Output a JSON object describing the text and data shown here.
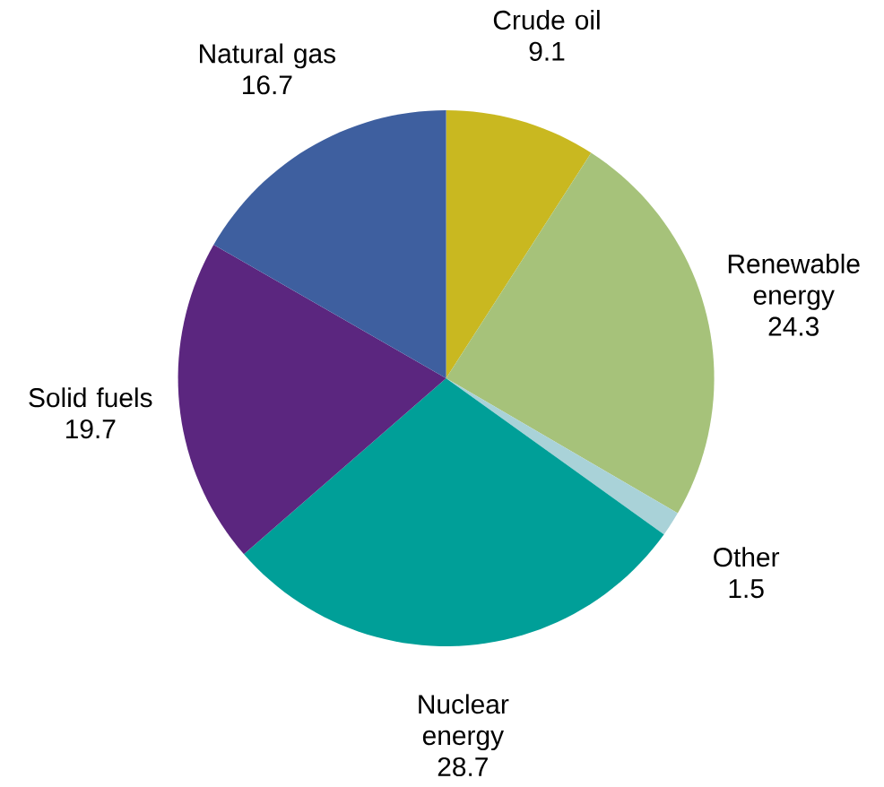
{
  "chart_data": {
    "type": "pie",
    "categories": [
      "Crude oil",
      "Renewable energy",
      "Other",
      "Nuclear energy",
      "Solid fuels",
      "Natural gas"
    ],
    "values": [
      9.1,
      24.3,
      1.5,
      28.7,
      19.7,
      16.7
    ],
    "value_labels": [
      "9.1",
      "24.3",
      "1.5",
      "28.7",
      "19.7",
      "16.7"
    ],
    "colors": [
      "#c9b820",
      "#a6c27a",
      "#a9d2d8",
      "#009f98",
      "#5b267f",
      "#3e5f9f"
    ]
  }
}
